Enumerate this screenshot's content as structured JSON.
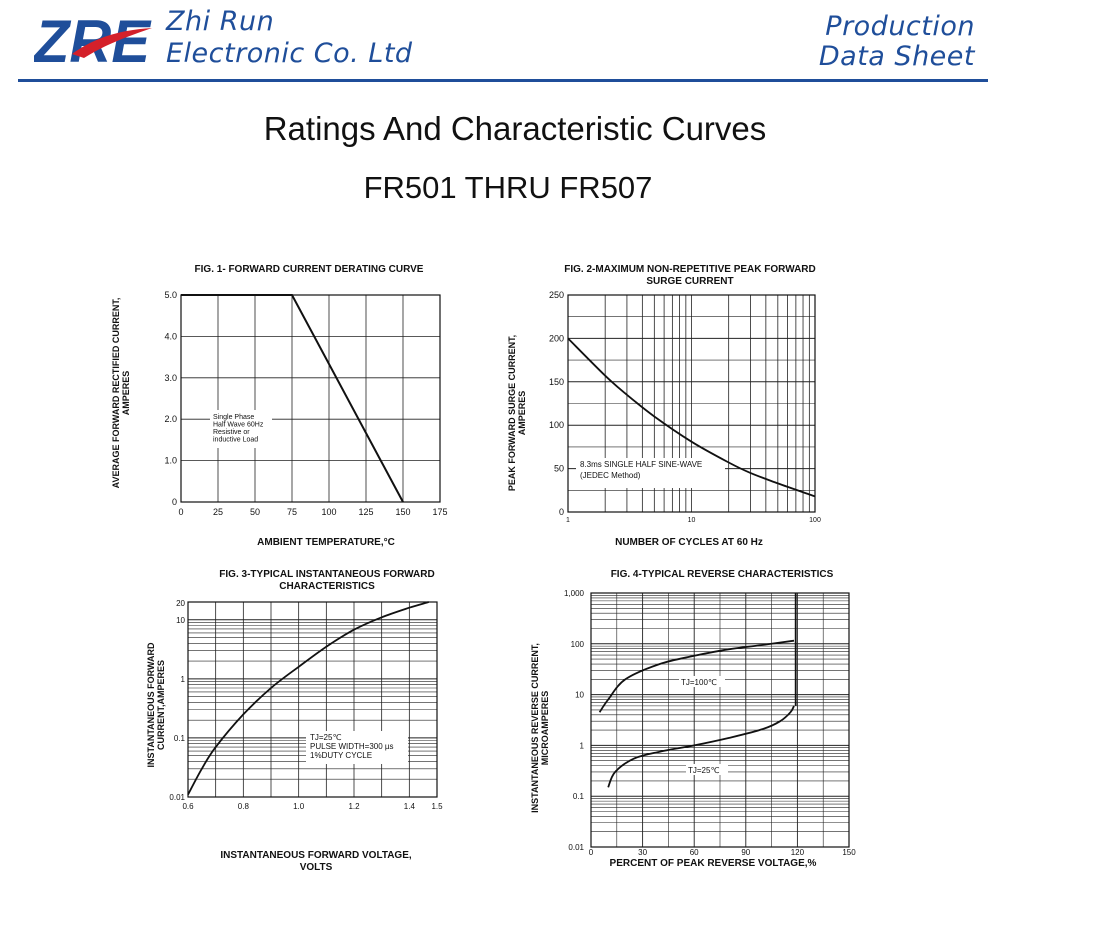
{
  "header": {
    "company_line1": "Zhi Run",
    "company_line2": "Electronic Co. Ltd",
    "doc_type_line1": "Production",
    "doc_type_line2": "Data Sheet",
    "logo_text": "ZRE",
    "brand_color": "#1f4e9a",
    "accent_color": "#d4202a"
  },
  "page": {
    "title": "Ratings And  Characteristic Curves",
    "subtitle": "FR501 THRU FR507"
  },
  "chart_data": [
    {
      "type": "line",
      "title": "FIG. 1- FORWARD CURRENT DERATING CURVE",
      "xlabel": "AMBIENT TEMPERATURE,°C",
      "ylabel_line1": "AVERAGE FORWARD RECTIFIED CURRENT,",
      "ylabel_line2": "AMPERES",
      "xlim": [
        0,
        175
      ],
      "ylim": [
        0,
        5
      ],
      "xticks": [
        0,
        25,
        50,
        75,
        100,
        125,
        150,
        175
      ],
      "yticks": [
        0,
        1.0,
        2.0,
        3.0,
        4.0,
        5.0
      ],
      "yticklabels": [
        "0",
        "1.0",
        "2.0",
        "3.0",
        "4.0",
        "5.0"
      ],
      "grid": true,
      "series": [
        {
          "x": [
            0,
            75,
            150
          ],
          "y": [
            5.0,
            5.0,
            0
          ]
        }
      ],
      "annotation": [
        "Single Phase",
        "Half Wave 60Hz",
        "Resistive or",
        "inductive Load"
      ]
    },
    {
      "type": "line",
      "title_line1": "FIG. 2-MAXIMUM NON-REPETITIVE PEAK FORWARD",
      "title_line2": "SURGE CURRENT",
      "xlabel": "NUMBER OF CYCLES AT 60 Hz",
      "ylabel_line1": "PEAK FORWARD SURGE CURRENT,",
      "ylabel_line2": "AMPERES",
      "xscale": "log",
      "xlim": [
        1,
        100
      ],
      "ylim": [
        0,
        250
      ],
      "xticks": [
        1,
        10,
        100
      ],
      "yticks": [
        0,
        50,
        100,
        150,
        200,
        250
      ],
      "grid": true,
      "series": [
        {
          "x": [
            1,
            2,
            3,
            5,
            10,
            20,
            30,
            50,
            100
          ],
          "y": [
            200,
            157,
            135,
            110,
            81,
            57,
            45,
            33,
            18
          ]
        }
      ],
      "annotation": [
        "8.3ms SINGLE HALF SINE-WAVE",
        "(JEDEC Method)"
      ]
    },
    {
      "type": "line",
      "title_line1": "FIG. 3-TYPICAL INSTANTANEOUS FORWARD",
      "title_line2": "CHARACTERISTICS",
      "xlabel_line1": "INSTANTANEOUS FORWARD VOLTAGE,",
      "xlabel_line2": "VOLTS",
      "ylabel_line1": "INSTANTANEOUS FORWARD",
      "ylabel_line2": "CURRENT,AMPERES",
      "yscale": "log",
      "xlim": [
        0.6,
        1.5
      ],
      "ylim": [
        0.01,
        20
      ],
      "xticks": [
        0.6,
        0.8,
        1.0,
        1.2,
        1.4,
        1.5
      ],
      "xticklabels": [
        "0.6",
        "0.8",
        "1.0",
        "1.2",
        "1.4",
        "1.5"
      ],
      "yticks": [
        0.01,
        0.1,
        1,
        10,
        20
      ],
      "yticklabels": [
        "0.01",
        "0.1",
        "1",
        "10",
        "20"
      ],
      "grid": true,
      "series": [
        {
          "x": [
            0.6,
            0.65,
            0.7,
            0.8,
            0.9,
            1.0,
            1.1,
            1.2,
            1.3,
            1.4,
            1.47
          ],
          "y": [
            0.011,
            0.03,
            0.07,
            0.25,
            0.7,
            1.6,
            3.5,
            6.8,
            11,
            16,
            20
          ]
        }
      ],
      "annotation": [
        "TJ=25℃",
        "PULSE WIDTH=300 µs",
        "1%DUTY CYCLE"
      ]
    },
    {
      "type": "line",
      "title": "FIG. 4-TYPICAL REVERSE CHARACTERISTICS",
      "xlabel": "PERCENT OF PEAK REVERSE VOLTAGE,%",
      "ylabel_line1": "INSTANTANEOUS REVERSE CURRENT,",
      "ylabel_line2": "MICROAMPERES",
      "yscale": "log",
      "xlim": [
        0,
        150
      ],
      "ylim": [
        0.01,
        1000
      ],
      "xticks": [
        0,
        30,
        60,
        90,
        120,
        150
      ],
      "yticks": [
        0.01,
        0.1,
        1,
        10,
        100,
        1000
      ],
      "yticklabels": [
        "0.01",
        "0.1",
        "1",
        "10",
        "100",
        "1,000"
      ],
      "grid": true,
      "series": [
        {
          "name": "TJ=100℃",
          "x": [
            5,
            10,
            20,
            40,
            60,
            80,
            100,
            118
          ],
          "y": [
            4.5,
            8,
            20,
            40,
            58,
            78,
            95,
            115
          ]
        },
        {
          "name": "TJ=25℃",
          "x": [
            10,
            14,
            25,
            40,
            60,
            80,
            100,
            110,
            116,
            118
          ],
          "y": [
            0.15,
            0.3,
            0.55,
            0.75,
            1.0,
            1.4,
            2.1,
            3.0,
            4.5,
            6
          ]
        }
      ],
      "vertical_limit_x": 119
    }
  ]
}
